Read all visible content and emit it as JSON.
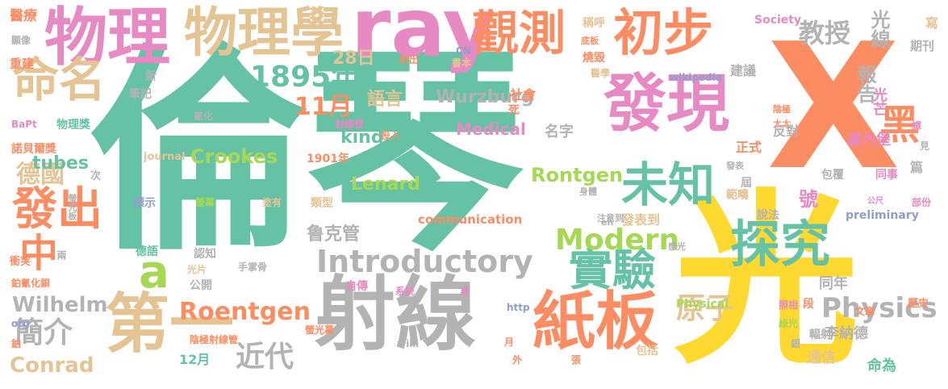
{
  "words": [
    "倫琴",
    "X",
    "光",
    "射線",
    "物理",
    "ray",
    "發現",
    "物理學",
    "第一",
    "紙板",
    "初步",
    "觀測",
    "命名",
    "探究",
    "未知",
    "實驗",
    "發出",
    "黑",
    "1895年",
    "Introductory",
    "Modern",
    "Physics",
    "中",
    "a",
    "11月",
    "Roentgen",
    "德國",
    "簡介",
    "原子",
    "近代",
    "教授",
    "光線",
    "報告",
    "Crookes",
    "Wilhelm",
    "Lenard",
    "Rontgen",
    "Conrad",
    "tubes",
    "鲁克管",
    "號",
    "28日",
    "語言",
    "Wurzburg",
    "kind",
    "Medical",
    "名字",
    "李納德",
    "盧內堡",
    "光芒",
    "同年",
    "通信",
    "命為",
    "communication",
    "preliminary",
    "Physical",
    "Society",
    "journal",
    "wikipedia",
    "寫",
    "期刊",
    "醫療",
    "顯像",
    "重建",
    "BaPt",
    "物理獎",
    "諾貝爾獎",
    "筆記",
    "氰化",
    "次",
    "標示",
    "德語",
    "螢光板",
    "衝突",
    "兩",
    "鉑氰化鋇",
    "org",
    "鉑",
    "螢幕",
    "塗有",
    "認知",
    "公開",
    "光片",
    "手掌骨",
    "陰極射線管",
    "螢光幕",
    "自傳",
    "系統",
    "桌",
    "http",
    "wiki",
    "月",
    "外",
    "射線管",
    "投入",
    "1901年",
    "類型",
    "CN",
    "書本",
    "射出",
    "底板",
    "稱呼",
    "燒毀",
    "醫學",
    "社會",
    "死",
    "新",
    "建議",
    "陰極",
    "太太",
    "反對",
    "正式",
    "範疇",
    "說法",
    "發表到",
    "注意到",
    "en",
    "身體",
    "感光",
    "發表",
    "屆",
    "包覆",
    "同事",
    "譯",
    "見",
    "部份",
    "公尺",
    "照相",
    "綠光",
    "銀",
    "歷史",
    "輻射",
    "段",
    "包括",
    "張",
    "篇",
    "12月",
    "文章"
  ],
  "palette": {
    "green": "#66c2a5",
    "orange": "#fc8d62",
    "pink": "#e78ac3",
    "lime": "#a6d854",
    "yellow": "#ffd92f",
    "tan": "#e5c494",
    "gray": "#b3b3b3",
    "blue": "#8da0cb",
    "background": "#ffffff"
  }
}
